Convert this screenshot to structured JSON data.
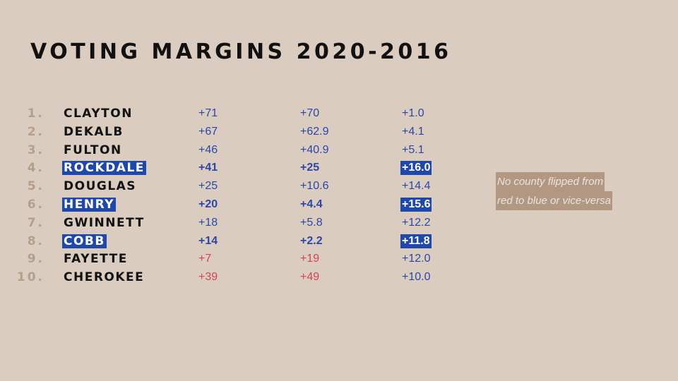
{
  "title": "VOTING MARGINS 2020-2016",
  "rows": [
    {
      "rank": "1.",
      "county": "CLAYTON",
      "margin_2020": "+71",
      "margin_2016": "+70",
      "change": "+1.0",
      "color": "#2a47a8",
      "highlighted": false
    },
    {
      "rank": "2.",
      "county": "DEKALB",
      "margin_2020": "+67",
      "margin_2016": "+62.9",
      "change": "+4.1",
      "color": "#2a47a8",
      "highlighted": false
    },
    {
      "rank": "3.",
      "county": "FULTON",
      "margin_2020": "+46",
      "margin_2016": "+40.9",
      "change": "+5.1",
      "color": "#2a47a8",
      "highlighted": false
    },
    {
      "rank": "4.",
      "county": "ROCKDALE",
      "margin_2020": "+41",
      "margin_2016": "+25",
      "change": "+16.0",
      "color": "#2a47a8",
      "highlighted": true
    },
    {
      "rank": "5.",
      "county": "DOUGLAS",
      "margin_2020": "+25",
      "margin_2016": "+10.6",
      "change": "+14.4",
      "color": "#2a47a8",
      "highlighted": false
    },
    {
      "rank": "6.",
      "county": "HENRY",
      "margin_2020": "+20",
      "margin_2016": "+4.4",
      "change": "+15.6",
      "color": "#2a47a8",
      "highlighted": true
    },
    {
      "rank": "7.",
      "county": "GWINNETT",
      "margin_2020": "+18",
      "margin_2016": "+5.8",
      "change": "+12.2",
      "color": "#2a47a8",
      "highlighted": false
    },
    {
      "rank": "8.",
      "county": "COBB",
      "margin_2020": "+14",
      "margin_2016": "+2.2",
      "change": "+11.8",
      "color": "#2a47a8",
      "highlighted": true
    },
    {
      "rank": "9.",
      "county": "FAYETTE",
      "margin_2020": "+7",
      "margin_2016": "+19",
      "change": "+12.0",
      "color": "#d9424f",
      "highlighted": false
    },
    {
      "rank": "10.",
      "county": "CHEROKEE",
      "margin_2020": "+39",
      "margin_2016": "+49",
      "change": "+10.0",
      "color": "#d9424f",
      "highlighted": false
    }
  ],
  "note": {
    "line1": "No county flipped  from",
    "line2": "red to blue or vice-versa"
  }
}
